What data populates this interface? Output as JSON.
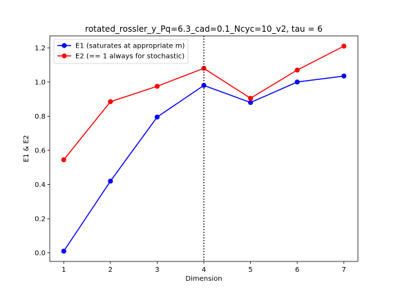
{
  "chart_data": {
    "type": "line",
    "title": "rotated_rossler_y_Pq=6.3_cad=0.1_Ncyc=10_v2, tau = 6",
    "xlabel": "Dimension",
    "ylabel": "E1 & E2",
    "x": [
      1,
      2,
      3,
      4,
      5,
      6,
      7
    ],
    "xticks": [
      "1",
      "2",
      "3",
      "4",
      "5",
      "6",
      "7"
    ],
    "yticks": [
      "0.0",
      "0.2",
      "0.4",
      "0.6",
      "0.8",
      "1.0",
      "1.2"
    ],
    "xlim": [
      0.7,
      7.3
    ],
    "ylim": [
      -0.05,
      1.27
    ],
    "grid": false,
    "legend_position": "top-left",
    "vline": {
      "x": 4,
      "style": "dotted",
      "color": "#000000"
    },
    "series": [
      {
        "name": "E1 (saturates at appropriate m)",
        "color": "#0000ff",
        "values": [
          0.01,
          0.42,
          0.795,
          0.98,
          0.88,
          1.0,
          1.035
        ]
      },
      {
        "name": "E2 (== 1 always for stochastic)",
        "color": "#ff0000",
        "values": [
          0.545,
          0.885,
          0.975,
          1.08,
          0.905,
          1.07,
          1.21
        ]
      }
    ]
  }
}
